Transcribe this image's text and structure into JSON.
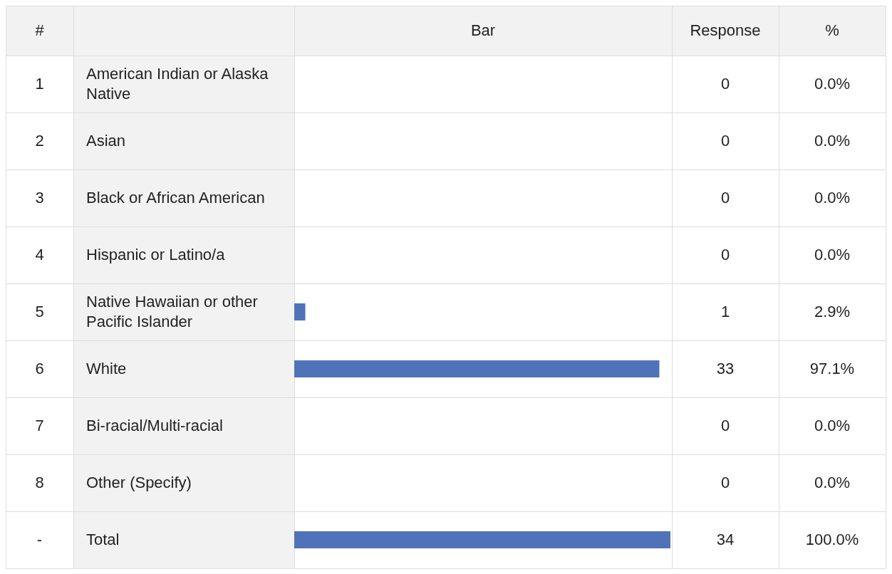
{
  "chart_data": {
    "type": "bar",
    "orientation": "horizontal",
    "xlabel": "Bar",
    "categories": [
      "American Indian or Alaska Native",
      "Asian",
      "Black or African American",
      "Hispanic or Latino/a",
      "Native Hawaiian or other Pacific Islander",
      "White",
      "Bi-racial/Multi-racial",
      "Other (Specify)",
      "Total"
    ],
    "values": [
      0,
      0,
      0,
      0,
      1,
      33,
      0,
      0,
      34
    ],
    "color": "#5072b8",
    "data_labels": true,
    "annotations": [
      "#",
      "Response",
      "%",
      "1",
      "2",
      "3",
      "4",
      "5",
      "6",
      "7",
      "8",
      "-",
      "0.0%",
      "0.0%",
      "0.0%",
      "0.0%",
      "2.9%",
      "97.1%",
      "0.0%",
      "0.0%",
      "100.0%"
    ]
  }
}
